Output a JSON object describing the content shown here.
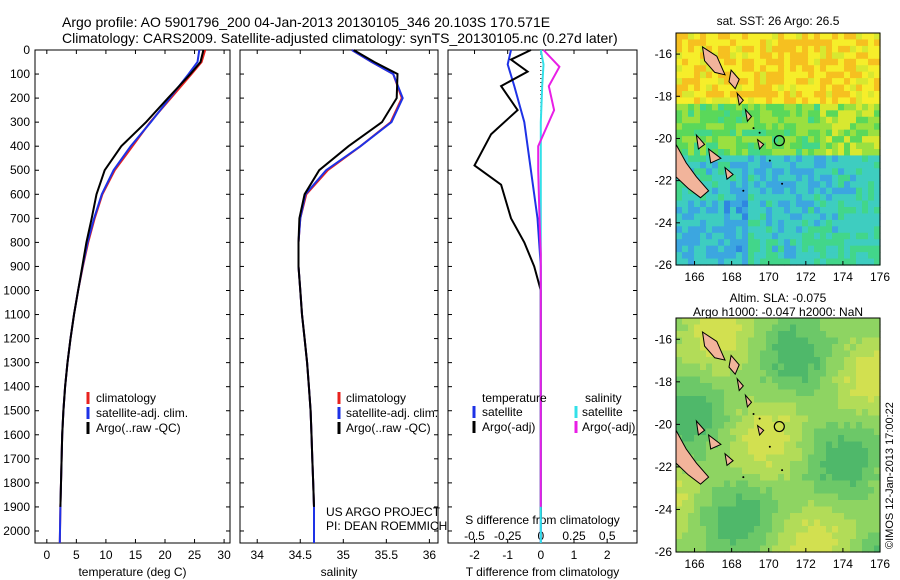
{
  "header": {
    "line1": "Argo profile: AO 5901796_200 04-Jan-2013 20130105_346 20.103S 170.571E",
    "line2": "Climatology: CARS2009. Satellite-adjusted climatology: synTS_20130105.nc (0.27d later)"
  },
  "legend_profile": {
    "climatology": "climatology",
    "satellite": "satellite-adj. clim.",
    "argo": "Argo(..raw -QC)"
  },
  "legend_diff": {
    "temperature_heading": "temperature",
    "salinity_heading": "salinity",
    "satellite": "satellite",
    "argo": "Argo(-adj)"
  },
  "project": {
    "line1": "US ARGO PROJECT",
    "line2": "PI: DEAN ROEMMICH"
  },
  "sst_map": {
    "title": "sat. SST: 26 Argo: 26.5",
    "xticks": [
      "166",
      "168",
      "170",
      "172",
      "174",
      "176"
    ],
    "yticks": [
      "-16",
      "-18",
      "-20",
      "-22",
      "-24",
      "-26"
    ]
  },
  "sla_map": {
    "title1": "Altim. SLA: -0.075",
    "title2": "Argo h1000: -0.047 h2000: NaN",
    "xticks": [
      "166",
      "168",
      "170",
      "172",
      "174",
      "176"
    ],
    "yticks": [
      "-16",
      "-18",
      "-20",
      "-22",
      "-24",
      "-26"
    ],
    "watermark": "©IMOS 12-Jan-2013 17:00:22"
  },
  "colors": {
    "climatology": "#e8221e",
    "satellite": "#1e32e6",
    "argo": "#000000",
    "sat_salinity": "#33e0e8",
    "argo_salinity": "#e81ee6"
  },
  "chart_data": [
    {
      "type": "line",
      "xlabel": "temperature (deg C)",
      "ylabel": "",
      "xticks": [
        "0",
        "5",
        "10",
        "15",
        "20",
        "25",
        "30"
      ],
      "yticks": [
        "0",
        "100",
        "200",
        "300",
        "400",
        "500",
        "600",
        "700",
        "800",
        "900",
        "1000",
        "1100",
        "1200",
        "1300",
        "1400",
        "1500",
        "1600",
        "1700",
        "1800",
        "1900",
        "2000"
      ],
      "xlim": [
        -2,
        31
      ],
      "ylim": [
        2050,
        0
      ],
      "series": [
        {
          "name": "climatology",
          "x": [
            26.8,
            26.2,
            24.5,
            21,
            17.5,
            14.5,
            11.5,
            9.4,
            8.1,
            7,
            6.1,
            5.3,
            4.6,
            4,
            3.5,
            3.1,
            2.8,
            2.6,
            2.5,
            2.4,
            2.3,
            2.2
          ],
          "y": [
            0,
            50,
            100,
            200,
            300,
            400,
            500,
            600,
            700,
            800,
            900,
            1000,
            1100,
            1200,
            1300,
            1400,
            1500,
            1600,
            1700,
            1800,
            1900,
            2050
          ]
        },
        {
          "name": "satellite-adj. clim.",
          "x": [
            25.8,
            25.5,
            24,
            20.8,
            17.6,
            14.2,
            11.3,
            9.3,
            8,
            6.9,
            6.05,
            5.3,
            4.6,
            4,
            3.5,
            3.1,
            2.8,
            2.6,
            2.5,
            2.4,
            2.3,
            2.2
          ],
          "y": [
            0,
            50,
            100,
            200,
            300,
            400,
            500,
            600,
            700,
            800,
            900,
            1000,
            1100,
            1200,
            1300,
            1400,
            1500,
            1600,
            1700,
            1800,
            1900,
            2050
          ]
        },
        {
          "name": "Argo(..raw -QC)",
          "x": [
            26.5,
            26,
            24.3,
            20.5,
            16.8,
            12.6,
            9.8,
            8.4,
            7.6,
            6.7,
            6,
            5.3,
            4.6,
            4,
            3.5,
            3.1,
            2.8,
            2.6,
            2.5,
            2.4,
            2.3
          ],
          "y": [
            0,
            50,
            100,
            200,
            300,
            400,
            500,
            600,
            700,
            800,
            900,
            1000,
            1100,
            1200,
            1300,
            1400,
            1500,
            1600,
            1700,
            1800,
            1900
          ]
        }
      ]
    },
    {
      "type": "line",
      "xlabel": "salinity",
      "ylabel": "",
      "xticks": [
        "34",
        "34.5",
        "35",
        "35.5",
        "36"
      ],
      "xlim": [
        33.8,
        36.1
      ],
      "ylim": [
        2050,
        0
      ],
      "series": [
        {
          "name": "climatology",
          "x": [
            35.1,
            35.33,
            35.58,
            35.68,
            35.55,
            35.2,
            34.82,
            34.57,
            34.5,
            34.48,
            34.48,
            34.5,
            34.52,
            34.55,
            34.58,
            34.6,
            34.62,
            34.63,
            34.64,
            34.65,
            34.66,
            34.66
          ],
          "y": [
            0,
            50,
            100,
            200,
            300,
            400,
            500,
            600,
            700,
            800,
            900,
            1000,
            1100,
            1200,
            1300,
            1400,
            1500,
            1600,
            1700,
            1800,
            1900,
            2050
          ]
        },
        {
          "name": "satellite-adj. clim.",
          "x": [
            35.1,
            35.33,
            35.58,
            35.69,
            35.56,
            35.2,
            34.8,
            34.56,
            34.5,
            34.48,
            34.48,
            34.5,
            34.52,
            34.55,
            34.58,
            34.6,
            34.62,
            34.63,
            34.64,
            34.65,
            34.66,
            34.66
          ],
          "y": [
            0,
            50,
            100,
            200,
            300,
            400,
            500,
            600,
            700,
            800,
            900,
            1000,
            1100,
            1200,
            1300,
            1400,
            1500,
            1600,
            1700,
            1800,
            1900,
            2050
          ]
        },
        {
          "name": "Argo(..raw -QC)",
          "x": [
            35.12,
            35.36,
            35.63,
            35.62,
            35.45,
            35.06,
            34.72,
            34.55,
            34.49,
            34.48,
            34.48,
            34.5,
            34.52,
            34.55,
            34.58,
            34.6,
            34.62,
            34.63,
            34.64,
            34.65,
            34.66
          ],
          "y": [
            0,
            50,
            100,
            200,
            300,
            400,
            500,
            600,
            700,
            800,
            900,
            1000,
            1100,
            1200,
            1300,
            1400,
            1500,
            1600,
            1700,
            1800,
            1900
          ]
        }
      ]
    },
    {
      "type": "line",
      "xlabel": "T difference from climatology",
      "xlabel_top": "S difference from climatology",
      "ylabel": "",
      "xticks": [
        "-2",
        "-1",
        "0",
        "1",
        "2"
      ],
      "xticks_top": [
        "-0.5",
        "-0.25",
        "0",
        "0.25",
        "0.5"
      ],
      "xlim": [
        -2.8,
        2.9
      ],
      "xlim_top": [
        -0.7,
        0.725
      ],
      "ylim": [
        2050,
        0
      ],
      "series": [
        {
          "name": "temperature satellite",
          "axis": "T",
          "x": [
            -0.9,
            -1.0,
            -0.8,
            -0.5,
            -0.3,
            -0.1,
            0,
            0,
            0,
            0,
            0,
            0,
            0
          ],
          "y": [
            0,
            60,
            150,
            300,
            500,
            700,
            900,
            1100,
            1300,
            1500,
            1700,
            1900,
            2050
          ]
        },
        {
          "name": "temperature Argo(-adj)",
          "axis": "T",
          "x": [
            -0.3,
            -0.9,
            -0.4,
            -1.2,
            -0.7,
            -1.5,
            -2.0,
            -1.2,
            -0.9,
            -0.5,
            -0.2,
            0,
            0,
            0,
            0,
            0,
            0,
            0
          ],
          "y": [
            0,
            40,
            90,
            150,
            250,
            350,
            480,
            560,
            700,
            800,
            900,
            1000,
            1100,
            1300,
            1500,
            1700,
            1850,
            1950
          ]
        },
        {
          "name": "salinity satellite",
          "axis": "S",
          "x": [
            0,
            0.02,
            0.01,
            0,
            0,
            0,
            0,
            0,
            0,
            0,
            0,
            0,
            0
          ],
          "y": [
            0,
            60,
            150,
            300,
            500,
            700,
            900,
            1100,
            1300,
            1500,
            1700,
            1900,
            2050
          ]
        },
        {
          "name": "salinity Argo(-adj)",
          "axis": "S",
          "x": [
            0.02,
            0.14,
            0.06,
            0.1,
            -0.02,
            -0.02,
            -0.01,
            0,
            0,
            0,
            0,
            0,
            0
          ],
          "y": [
            0,
            70,
            150,
            250,
            400,
            500,
            700,
            850,
            1000,
            1100,
            1300,
            1600,
            1900
          ]
        }
      ]
    }
  ]
}
